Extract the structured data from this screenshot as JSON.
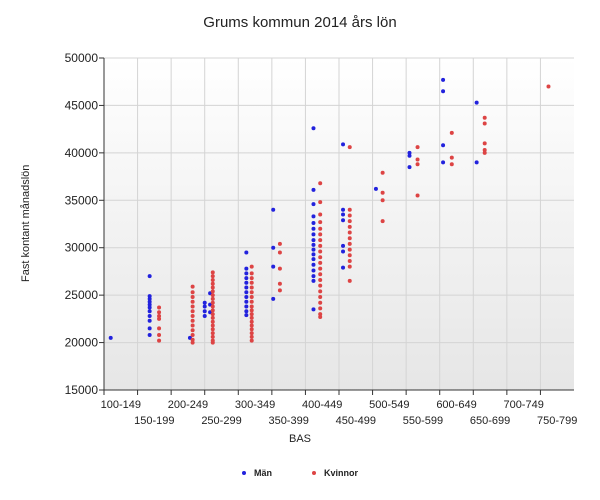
{
  "chart_data": {
    "type": "scatter",
    "title": "Grums kommun 2014 års lön",
    "xlabel": "BAS",
    "ylabel": "Fast kontant månadslön",
    "categories": [
      "100-149",
      "150-199",
      "200-249",
      "250-299",
      "300-349",
      "350-399",
      "400-449",
      "450-499",
      "500-549",
      "550-599",
      "600-649",
      "650-699",
      "700-749",
      "750-799"
    ],
    "ylim": [
      15000,
      50000
    ],
    "yticks": [
      15000,
      20000,
      25000,
      30000,
      35000,
      40000,
      45000,
      50000
    ],
    "ytick_labels": [
      "15000",
      "20000",
      "25000",
      "30000",
      "35000",
      "40000",
      "45000",
      "50000"
    ],
    "grid": true,
    "legend_position": "bottom",
    "series": [
      {
        "name": "Män",
        "color": "#2222dd",
        "points": [
          {
            "x": 110,
            "y": 20500
          },
          {
            "x": 168,
            "y": 27000
          },
          {
            "x": 168,
            "y": 24900
          },
          {
            "x": 168,
            "y": 24600
          },
          {
            "x": 168,
            "y": 24300
          },
          {
            "x": 168,
            "y": 24000
          },
          {
            "x": 168,
            "y": 23700
          },
          {
            "x": 168,
            "y": 23300
          },
          {
            "x": 168,
            "y": 22800
          },
          {
            "x": 168,
            "y": 22300
          },
          {
            "x": 168,
            "y": 21500
          },
          {
            "x": 168,
            "y": 20800
          },
          {
            "x": 228,
            "y": 20500
          },
          {
            "x": 250,
            "y": 24200
          },
          {
            "x": 250,
            "y": 23800
          },
          {
            "x": 250,
            "y": 23300
          },
          {
            "x": 250,
            "y": 22800
          },
          {
            "x": 258,
            "y": 25200
          },
          {
            "x": 258,
            "y": 24000
          },
          {
            "x": 258,
            "y": 23200
          },
          {
            "x": 312,
            "y": 29500
          },
          {
            "x": 312,
            "y": 27800
          },
          {
            "x": 312,
            "y": 27300
          },
          {
            "x": 312,
            "y": 26800
          },
          {
            "x": 312,
            "y": 26300
          },
          {
            "x": 312,
            "y": 25800
          },
          {
            "x": 312,
            "y": 25300
          },
          {
            "x": 312,
            "y": 24800
          },
          {
            "x": 312,
            "y": 24300
          },
          {
            "x": 312,
            "y": 23800
          },
          {
            "x": 312,
            "y": 23300
          },
          {
            "x": 312,
            "y": 22900
          },
          {
            "x": 352,
            "y": 34000
          },
          {
            "x": 352,
            "y": 30000
          },
          {
            "x": 352,
            "y": 28000
          },
          {
            "x": 352,
            "y": 24600
          },
          {
            "x": 412,
            "y": 42600
          },
          {
            "x": 412,
            "y": 36100
          },
          {
            "x": 412,
            "y": 34600
          },
          {
            "x": 412,
            "y": 33300
          },
          {
            "x": 412,
            "y": 32600
          },
          {
            "x": 412,
            "y": 32000
          },
          {
            "x": 412,
            "y": 31400
          },
          {
            "x": 412,
            "y": 30800
          },
          {
            "x": 412,
            "y": 30300
          },
          {
            "x": 412,
            "y": 29800
          },
          {
            "x": 412,
            "y": 29300
          },
          {
            "x": 412,
            "y": 28800
          },
          {
            "x": 412,
            "y": 28200
          },
          {
            "x": 412,
            "y": 27600
          },
          {
            "x": 412,
            "y": 27000
          },
          {
            "x": 412,
            "y": 26500
          },
          {
            "x": 412,
            "y": 23500
          },
          {
            "x": 456,
            "y": 40900
          },
          {
            "x": 456,
            "y": 34000
          },
          {
            "x": 456,
            "y": 33500
          },
          {
            "x": 456,
            "y": 32900
          },
          {
            "x": 456,
            "y": 30200
          },
          {
            "x": 456,
            "y": 29600
          },
          {
            "x": 456,
            "y": 27900
          },
          {
            "x": 505,
            "y": 36200
          },
          {
            "x": 555,
            "y": 40000
          },
          {
            "x": 555,
            "y": 39700
          },
          {
            "x": 555,
            "y": 38500
          },
          {
            "x": 605,
            "y": 47700
          },
          {
            "x": 605,
            "y": 46500
          },
          {
            "x": 605,
            "y": 40800
          },
          {
            "x": 605,
            "y": 39000
          },
          {
            "x": 655,
            "y": 45300
          },
          {
            "x": 655,
            "y": 39000
          }
        ]
      },
      {
        "name": "Kvinnor",
        "color": "#dd4444",
        "points": [
          {
            "x": 182,
            "y": 23700
          },
          {
            "x": 182,
            "y": 23200
          },
          {
            "x": 182,
            "y": 22800
          },
          {
            "x": 182,
            "y": 22500
          },
          {
            "x": 182,
            "y": 21500
          },
          {
            "x": 182,
            "y": 20800
          },
          {
            "x": 182,
            "y": 20200
          },
          {
            "x": 232,
            "y": 25900
          },
          {
            "x": 232,
            "y": 25300
          },
          {
            "x": 232,
            "y": 24800
          },
          {
            "x": 232,
            "y": 24300
          },
          {
            "x": 232,
            "y": 23800
          },
          {
            "x": 232,
            "y": 23300
          },
          {
            "x": 232,
            "y": 22800
          },
          {
            "x": 232,
            "y": 22300
          },
          {
            "x": 232,
            "y": 21800
          },
          {
            "x": 232,
            "y": 21300
          },
          {
            "x": 232,
            "y": 20800
          },
          {
            "x": 232,
            "y": 20300
          },
          {
            "x": 232,
            "y": 20000
          },
          {
            "x": 262,
            "y": 27400
          },
          {
            "x": 262,
            "y": 27000
          },
          {
            "x": 262,
            "y": 26600
          },
          {
            "x": 262,
            "y": 26200
          },
          {
            "x": 262,
            "y": 25800
          },
          {
            "x": 262,
            "y": 25400
          },
          {
            "x": 262,
            "y": 25000
          },
          {
            "x": 262,
            "y": 24600
          },
          {
            "x": 262,
            "y": 24200
          },
          {
            "x": 262,
            "y": 23800
          },
          {
            "x": 262,
            "y": 23400
          },
          {
            "x": 262,
            "y": 23000
          },
          {
            "x": 262,
            "y": 22600
          },
          {
            "x": 262,
            "y": 22200
          },
          {
            "x": 262,
            "y": 21800
          },
          {
            "x": 262,
            "y": 21400
          },
          {
            "x": 262,
            "y": 21000
          },
          {
            "x": 262,
            "y": 20600
          },
          {
            "x": 262,
            "y": 20200
          },
          {
            "x": 262,
            "y": 20000
          },
          {
            "x": 320,
            "y": 28000
          },
          {
            "x": 320,
            "y": 27300
          },
          {
            "x": 320,
            "y": 26800
          },
          {
            "x": 320,
            "y": 26300
          },
          {
            "x": 320,
            "y": 25800
          },
          {
            "x": 320,
            "y": 25300
          },
          {
            "x": 320,
            "y": 24800
          },
          {
            "x": 320,
            "y": 24300
          },
          {
            "x": 320,
            "y": 23800
          },
          {
            "x": 320,
            "y": 23400
          },
          {
            "x": 320,
            "y": 23000
          },
          {
            "x": 320,
            "y": 22600
          },
          {
            "x": 320,
            "y": 22200
          },
          {
            "x": 320,
            "y": 21800
          },
          {
            "x": 320,
            "y": 21400
          },
          {
            "x": 320,
            "y": 21000
          },
          {
            "x": 320,
            "y": 20600
          },
          {
            "x": 320,
            "y": 20200
          },
          {
            "x": 362,
            "y": 30400
          },
          {
            "x": 362,
            "y": 29500
          },
          {
            "x": 362,
            "y": 27800
          },
          {
            "x": 362,
            "y": 26200
          },
          {
            "x": 362,
            "y": 25500
          },
          {
            "x": 422,
            "y": 36800
          },
          {
            "x": 422,
            "y": 34800
          },
          {
            "x": 422,
            "y": 33500
          },
          {
            "x": 422,
            "y": 32700
          },
          {
            "x": 422,
            "y": 32000
          },
          {
            "x": 422,
            "y": 31400
          },
          {
            "x": 422,
            "y": 30800
          },
          {
            "x": 422,
            "y": 30200
          },
          {
            "x": 422,
            "y": 29600
          },
          {
            "x": 422,
            "y": 29000
          },
          {
            "x": 422,
            "y": 28400
          },
          {
            "x": 422,
            "y": 27800
          },
          {
            "x": 422,
            "y": 27200
          },
          {
            "x": 422,
            "y": 26600
          },
          {
            "x": 422,
            "y": 26000
          },
          {
            "x": 422,
            "y": 25400
          },
          {
            "x": 422,
            "y": 24800
          },
          {
            "x": 422,
            "y": 24200
          },
          {
            "x": 422,
            "y": 23600
          },
          {
            "x": 422,
            "y": 23000
          },
          {
            "x": 422,
            "y": 22700
          },
          {
            "x": 466,
            "y": 40600
          },
          {
            "x": 466,
            "y": 34000
          },
          {
            "x": 466,
            "y": 33400
          },
          {
            "x": 466,
            "y": 32800
          },
          {
            "x": 466,
            "y": 32200
          },
          {
            "x": 466,
            "y": 31600
          },
          {
            "x": 466,
            "y": 31000
          },
          {
            "x": 466,
            "y": 30400
          },
          {
            "x": 466,
            "y": 29800
          },
          {
            "x": 466,
            "y": 29200
          },
          {
            "x": 466,
            "y": 28600
          },
          {
            "x": 466,
            "y": 28000
          },
          {
            "x": 466,
            "y": 26500
          },
          {
            "x": 515,
            "y": 37900
          },
          {
            "x": 515,
            "y": 35800
          },
          {
            "x": 515,
            "y": 35000
          },
          {
            "x": 515,
            "y": 32800
          },
          {
            "x": 567,
            "y": 40600
          },
          {
            "x": 567,
            "y": 39300
          },
          {
            "x": 567,
            "y": 38800
          },
          {
            "x": 567,
            "y": 35500
          },
          {
            "x": 618,
            "y": 42100
          },
          {
            "x": 618,
            "y": 39500
          },
          {
            "x": 618,
            "y": 38800
          },
          {
            "x": 667,
            "y": 43700
          },
          {
            "x": 667,
            "y": 43100
          },
          {
            "x": 667,
            "y": 41000
          },
          {
            "x": 667,
            "y": 40300
          },
          {
            "x": 667,
            "y": 40000
          },
          {
            "x": 762,
            "y": 47000
          }
        ]
      }
    ]
  }
}
